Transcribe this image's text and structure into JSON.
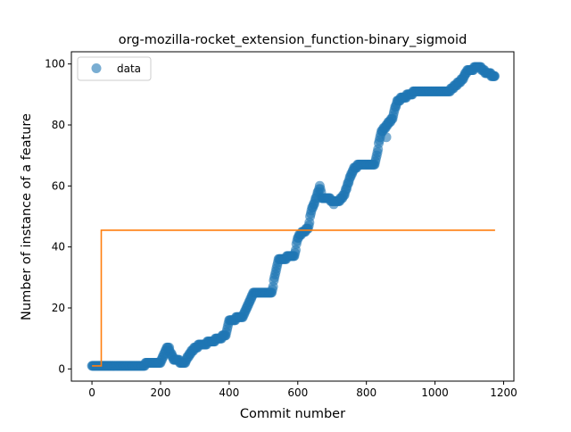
{
  "chart_data": {
    "type": "scatter",
    "title": "org-mozilla-rocket_extension_function-binary_sigmoid",
    "xlabel": "Commit number",
    "ylabel": "Number of instance of a feature",
    "xlim": [
      -60,
      1230
    ],
    "ylim": [
      -4,
      104
    ],
    "xticks": [
      0,
      200,
      400,
      600,
      800,
      1000,
      1200
    ],
    "yticks": [
      0,
      20,
      40,
      60,
      80,
      100
    ],
    "grid": false,
    "legend": {
      "position": "top-left",
      "entries": [
        "data"
      ]
    },
    "colors": {
      "data": "#1f77b4",
      "fit": "#ff7f0e"
    },
    "series": [
      {
        "name": "data",
        "kind": "scatter",
        "knots": [
          [
            0,
            1
          ],
          [
            150,
            1
          ],
          [
            160,
            2
          ],
          [
            200,
            2
          ],
          [
            210,
            5
          ],
          [
            220,
            7
          ],
          [
            230,
            5
          ],
          [
            240,
            3
          ],
          [
            270,
            2
          ],
          [
            285,
            5
          ],
          [
            300,
            7
          ],
          [
            320,
            8
          ],
          [
            350,
            9
          ],
          [
            370,
            10
          ],
          [
            390,
            11
          ],
          [
            400,
            16
          ],
          [
            440,
            17
          ],
          [
            460,
            22
          ],
          [
            470,
            25
          ],
          [
            525,
            25
          ],
          [
            530,
            29
          ],
          [
            545,
            36
          ],
          [
            590,
            37
          ],
          [
            600,
            43
          ],
          [
            615,
            45
          ],
          [
            630,
            46
          ],
          [
            640,
            52
          ],
          [
            650,
            55
          ],
          [
            665,
            60
          ],
          [
            670,
            56
          ],
          [
            720,
            55
          ],
          [
            735,
            57
          ],
          [
            750,
            62
          ],
          [
            765,
            66
          ],
          [
            780,
            67
          ],
          [
            825,
            67
          ],
          [
            835,
            73
          ],
          [
            845,
            78
          ],
          [
            860,
            80
          ],
          [
            875,
            82
          ],
          [
            890,
            88
          ],
          [
            910,
            89
          ],
          [
            925,
            90
          ],
          [
            945,
            91
          ],
          [
            1040,
            91
          ],
          [
            1060,
            93
          ],
          [
            1080,
            95
          ],
          [
            1095,
            98
          ],
          [
            1130,
            99
          ],
          [
            1150,
            97
          ],
          [
            1175,
            96
          ]
        ],
        "outliers": [
          [
            225,
            7
          ],
          [
            705,
            54
          ],
          [
            858,
            76
          ],
          [
            1172,
            96
          ]
        ]
      },
      {
        "name": "",
        "kind": "line",
        "points": [
          [
            0,
            1
          ],
          [
            27,
            1
          ],
          [
            27,
            45.5
          ],
          [
            1175,
            45.5
          ]
        ]
      }
    ]
  }
}
